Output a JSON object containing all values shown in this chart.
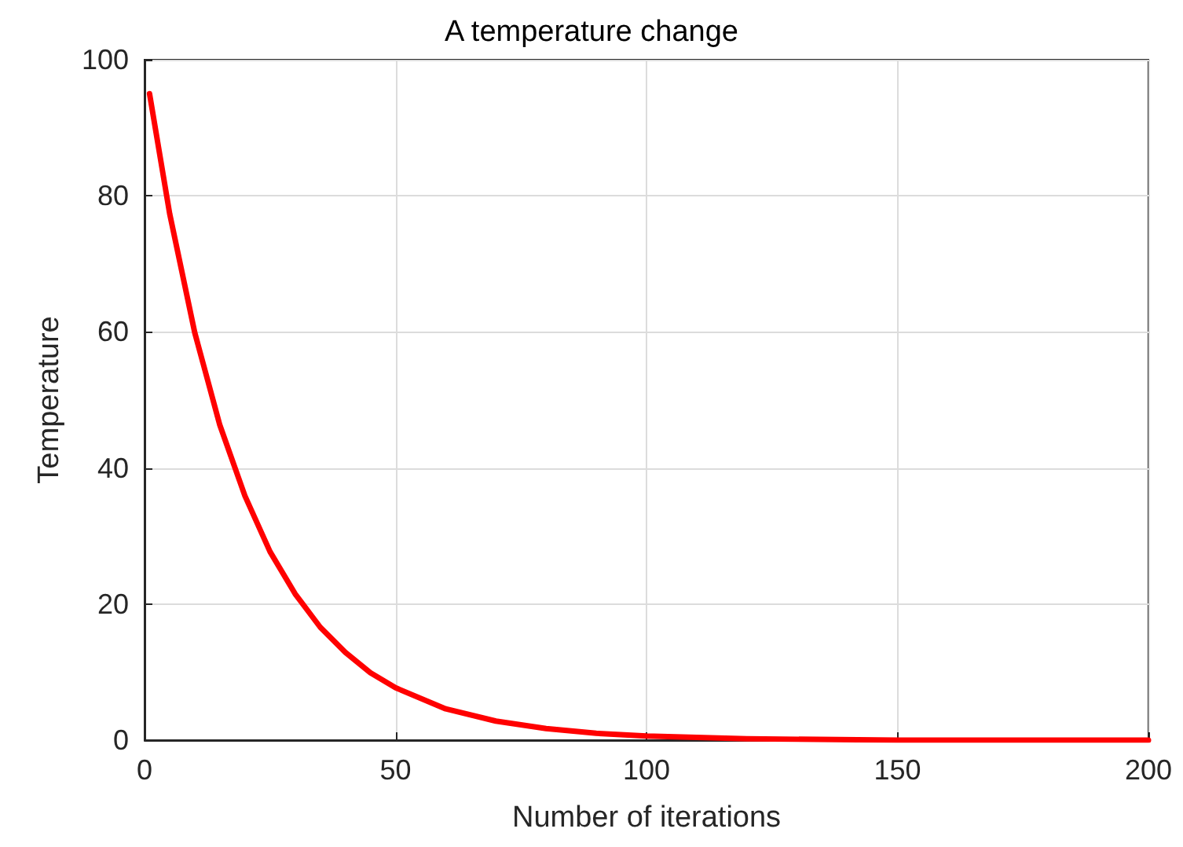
{
  "chart_data": {
    "type": "line",
    "title": "A temperature change",
    "xlabel": "Number of iterations",
    "ylabel": "Temperature",
    "x": [
      1,
      5,
      10,
      15,
      20,
      25,
      30,
      35,
      40,
      45,
      50,
      60,
      70,
      80,
      90,
      100,
      120,
      150,
      200
    ],
    "series": [
      {
        "color": "#ff0000",
        "values": [
          95,
          77.4,
          59.9,
          46.3,
          35.9,
          27.7,
          21.5,
          16.6,
          12.9,
          9.9,
          7.7,
          4.6,
          2.8,
          1.7,
          1,
          0.6,
          0.2,
          0,
          0
        ]
      }
    ],
    "xlim": [
      0,
      200
    ],
    "xticks": [
      0,
      50,
      100,
      150,
      200
    ],
    "ylim": [
      0,
      100
    ],
    "yticks": [
      0,
      20,
      40,
      60,
      80,
      100
    ],
    "grid": true,
    "marker": "none",
    "line_style": "solid"
  }
}
